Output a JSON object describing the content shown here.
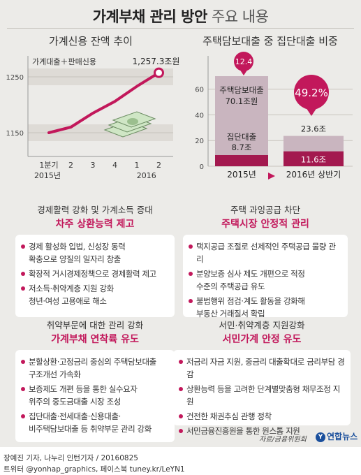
{
  "header": {
    "title_main": "가계부채 관리 방안",
    "title_sub": "주요 내용"
  },
  "chart_data": [
    {
      "type": "line",
      "title": "가계신용 잔액 추이",
      "series": [
        {
          "name": "가계대출＋판매신용",
          "values": [
            1150,
            1160,
            1185,
            1206,
            1233,
            1257.3
          ]
        }
      ],
      "x_labels": [
        "1분기",
        "2",
        "3",
        "4",
        "1",
        "2"
      ],
      "x_year_labels": [
        "2015년",
        "2016"
      ],
      "yticks": [
        "1250",
        "1150"
      ],
      "ylim": [
        1110,
        1275
      ],
      "end_label": "1,257.3조원"
    },
    {
      "type": "bar",
      "title": "주택담보대출 중 집단대출 비중",
      "categories": [
        "2015년",
        "2016년 상반기"
      ],
      "series": [
        {
          "name": "주택담보대출",
          "values": [
            70.1,
            23.6
          ],
          "labels": [
            "주택담보대출",
            "23.6조"
          ],
          "value_labels": [
            "70.1조원",
            ""
          ]
        },
        {
          "name": "집단대출",
          "values": [
            8.7,
            11.6
          ],
          "labels": [
            "집단대출",
            "11.6조"
          ],
          "value_labels": [
            "8.7조",
            ""
          ]
        }
      ],
      "share_labels": [
        "12.4",
        "49.2%"
      ],
      "yticks": [
        "60",
        "40",
        "20",
        "0"
      ],
      "ylim": [
        0,
        75
      ]
    }
  ],
  "sections": [
    {
      "heading": "경제활력 강화 및 가계소득 증대",
      "subheading": "차주 상환능력 제고",
      "items": [
        [
          "경제 활성화 입법, 신성장 동력",
          "확충으로 양질의 일자리 창출"
        ],
        [
          "확장적 거시경제정책으로 경제활력 제고"
        ],
        [
          "저소득·취약계층 지원 강화",
          "청년·여성 고용애로 해소"
        ]
      ]
    },
    {
      "heading": "주택 과잉공급 차단",
      "subheading": "주택시장 안정적 관리",
      "items": [
        [
          "택지공급 조절로 선제적인 주택공급 물량 관리"
        ],
        [
          "분양보증 심사 제도 개편으로 적정",
          "수준의 주택공급 유도"
        ],
        [
          "불법행위 점검·계도 활동을 강화해",
          "부동산 거래질서 확립"
        ]
      ]
    },
    {
      "heading": "취약부문에 대한 관리 강화",
      "subheading": "가계부채 연착륙 유도",
      "items": [
        [
          "분할상환·고정금리 중심의 주택담보대출",
          "구조개선 가속화"
        ],
        [
          "보증제도 개편 등을 통한 실수요자",
          "위주의 중도금대출 시장 조성"
        ],
        [
          "집단대출·전세대출·신용대출·",
          "비주택담보대출 등 취약부문 관리 강화"
        ]
      ]
    },
    {
      "heading": "서민·취약계층 지원강화",
      "subheading": "서민가계 안정 유도",
      "items": [
        [
          "저금리 자금 지원, 중금리 대출확대로 금리부담 경감"
        ],
        [
          "상환능력 등을 고려한 단계별맞춤형 채무조정 지원"
        ],
        [
          "건전한 채권추심 관행 정착"
        ],
        [
          "서민금융진흥원을 통한 원스톱 지원"
        ]
      ]
    }
  ],
  "source": "자료/금융위원회",
  "logo": "연합뉴스",
  "footer": {
    "line1": "장예진 기자, 나누리 인턴기자 / 20160825",
    "line2": "트위터 @yonhap_graphics, 페이스북 tuney.kr/LeYN1"
  },
  "colors": {
    "accent": "#c2185b",
    "panel": "#ecebe8",
    "bar_light": "#c9b5bf",
    "bar_dark": "#a3194f"
  },
  "icons": [
    "money-stack-icon",
    "bullet-dot-icon",
    "arrow-right-icon",
    "yonhap-logo-icon"
  ]
}
